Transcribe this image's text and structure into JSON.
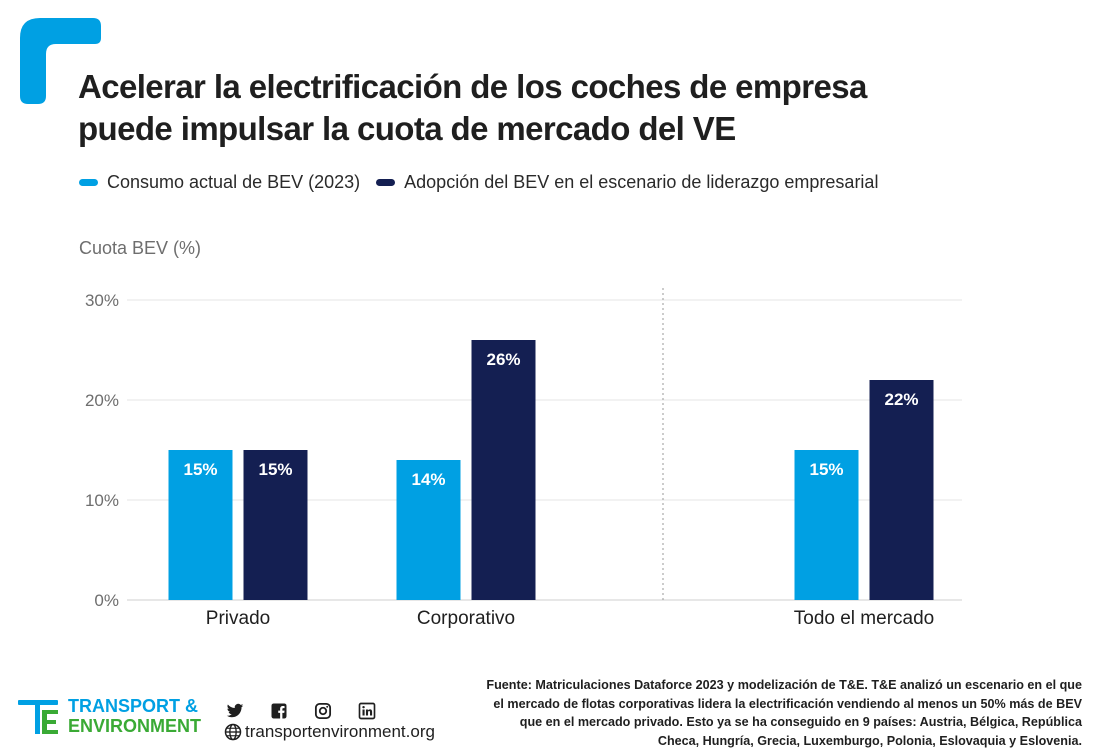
{
  "title_lines": [
    "Acelerar la electrificación de los coches de empresa",
    "puede impulsar la cuota de mercado del VE"
  ],
  "chart_data": {
    "type": "bar",
    "title": "Acelerar la electrificación de los coches de empresa puede impulsar la cuota de mercado del VE",
    "ylabel": "Cuota BEV (%)",
    "xlabel": "",
    "categories": [
      "Privado",
      "Corporativo",
      "Todo el mercado"
    ],
    "series": [
      {
        "name": "Consumo actual de BEV (2023)",
        "color": "#00a0e3",
        "values": [
          15,
          14,
          15
        ],
        "labels": [
          "15%",
          "14%",
          "15%"
        ]
      },
      {
        "name": "Adopción del BEV en el escenario de liderazgo empresarial",
        "color": "#141f52",
        "values": [
          15,
          26,
          22
        ],
        "labels": [
          "15%",
          "26%",
          "22%"
        ]
      }
    ],
    "ylim": [
      0,
      30
    ],
    "yticks": [
      0,
      10,
      20,
      30
    ],
    "ytick_labels": [
      "0%",
      "10%",
      "20%",
      "30%"
    ],
    "grid": true,
    "legend_position": "top-left",
    "separator_before_category": "Todo el mercado"
  },
  "footer": {
    "logo_line1": "TRANSPORT &",
    "logo_line2": "ENVIRONMENT",
    "website": "transportenvironment.org",
    "social_icons": [
      "twitter-icon",
      "facebook-icon",
      "instagram-icon",
      "linkedin-icon"
    ],
    "source_lines": [
      "Fuente: Matriculaciones Dataforce 2023 y modelización de T&E. T&E analizó un escenario en el que",
      "el mercado de flotas corporativas lidera la electrificación vendiendo al menos un 50% más de BEV",
      "que en el mercado privado. Esto ya se ha conseguido en 9 países: Austria, Bélgica, República",
      "Checa, Hungría, Grecia, Luxemburgo, Polonia, Eslovaquia y Eslovenia."
    ]
  },
  "colors": {
    "accent": "#00a0e3",
    "navy": "#141f52",
    "green": "#3aaa35"
  }
}
